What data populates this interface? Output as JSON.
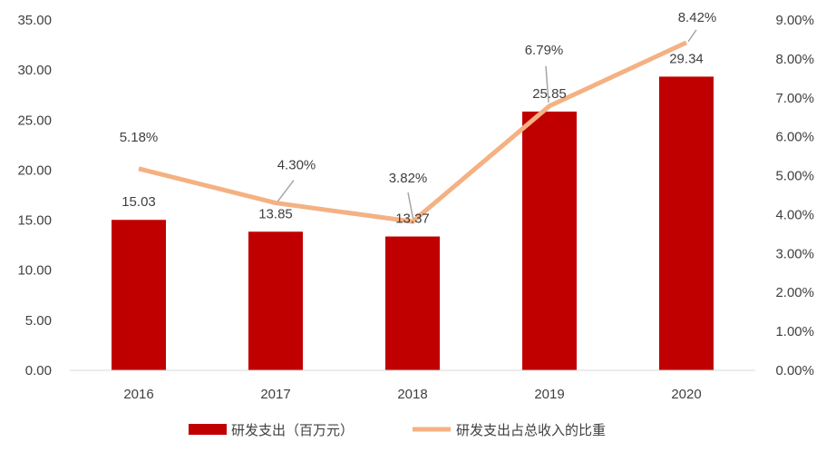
{
  "chart_data": {
    "type": "bar+line",
    "categories": [
      "2016",
      "2017",
      "2018",
      "2019",
      "2020"
    ],
    "series": [
      {
        "name": "研发支出（百万元）",
        "type": "bar",
        "axis": "left",
        "color": "#C00000",
        "values": [
          15.03,
          13.85,
          13.37,
          25.85,
          29.34
        ],
        "labels": [
          "15.03",
          "13.85",
          "13.37",
          "25.85",
          "29.34"
        ]
      },
      {
        "name": "研发支出占总收入的比重",
        "type": "line",
        "axis": "right",
        "color": "#F4B183",
        "values": [
          5.18,
          4.3,
          3.82,
          6.79,
          8.42
        ],
        "labels": [
          "5.18%",
          "4.30%",
          "3.82%",
          "6.79%",
          "8.42%"
        ]
      }
    ],
    "left_axis": {
      "ylim": [
        0,
        35
      ],
      "ticks": [
        "0.00",
        "5.00",
        "10.00",
        "15.00",
        "20.00",
        "25.00",
        "30.00",
        "35.00"
      ]
    },
    "right_axis": {
      "ylim": [
        0,
        9
      ],
      "ticks": [
        "0.00%",
        "1.00%",
        "2.00%",
        "3.00%",
        "4.00%",
        "5.00%",
        "6.00%",
        "7.00%",
        "8.00%",
        "9.00%"
      ]
    },
    "grid": false,
    "legend": "bottom"
  }
}
